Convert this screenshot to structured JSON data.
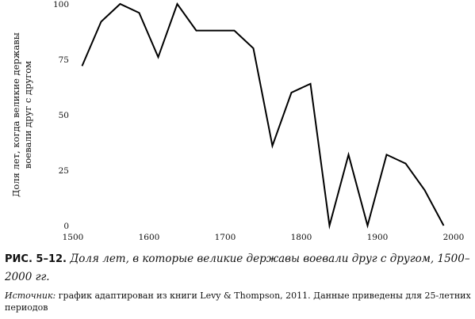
{
  "chart_data": {
    "type": "line",
    "title": "",
    "xlabel": "",
    "ylabel": [
      "Доля лет, когда великие державы",
      "воевали друг с другом"
    ],
    "xlim": [
      1500,
      2000
    ],
    "ylim": [
      0,
      100
    ],
    "x_ticks": [
      1500,
      1600,
      1700,
      1800,
      1900,
      2000
    ],
    "y_ticks": [
      0,
      25,
      50,
      75,
      100
    ],
    "x_tick_labels": [
      "1500",
      "1600",
      "1700",
      "1800",
      "1900",
      "2000"
    ],
    "y_tick_labels": [
      "0",
      "25",
      "50",
      "75",
      "100"
    ],
    "grid": false,
    "line_color": "#000000",
    "series": [
      {
        "x": [
          1512,
          1537,
          1562,
          1587,
          1612,
          1637,
          1662,
          1687,
          1712,
          1737,
          1762,
          1787,
          1812,
          1837,
          1862,
          1887,
          1912,
          1937,
          1962,
          1987
        ],
        "y": [
          72,
          92,
          100,
          96,
          76,
          100,
          88,
          88,
          88,
          80,
          36,
          60,
          64,
          0,
          32,
          0,
          32,
          28,
          16,
          0
        ]
      }
    ]
  },
  "caption": {
    "label": "РИС. 5–12.",
    "title": "Доля лет, в которые великие державы воевали друг с другом, 1500–2000 гг."
  },
  "source": {
    "label": "Источник:",
    "text": " график адаптирован из книги Levy & Thompson, 2011. Данные приведены для 25-летних периодов"
  }
}
